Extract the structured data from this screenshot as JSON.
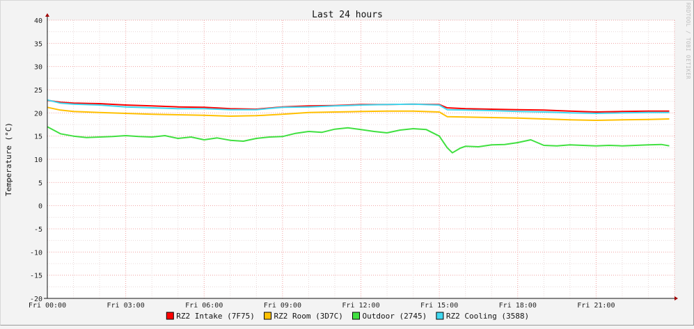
{
  "chart_data": {
    "type": "line",
    "title": "Last 24 hours",
    "ylabel": "Temperature (°C)",
    "xlabel": "",
    "watermark": "RRDTOOL / TOBI OETIKER",
    "ylim": [
      -20,
      40
    ],
    "yticks": [
      "40",
      "35",
      "30",
      "25",
      "20",
      "15",
      "10",
      "5",
      "0",
      "-5",
      "-10",
      "-15",
      "-20"
    ],
    "xlim_hours": [
      0,
      24
    ],
    "xticks": [
      "Fri 00:00",
      "Fri 03:00",
      "Fri 06:00",
      "Fri 09:00",
      "Fri 12:00",
      "Fri 15:00",
      "Fri 18:00",
      "Fri 21:00"
    ],
    "grid": true,
    "legend_position": "bottom",
    "series": [
      {
        "name": "RZ2 Intake (7F75)",
        "color": "#ff0000",
        "x": [
          0,
          0.5,
          1,
          2,
          3,
          4,
          5,
          6,
          7,
          8,
          9,
          10,
          11,
          12,
          13,
          14,
          15,
          15.3,
          16,
          17,
          18,
          19,
          20,
          21,
          22,
          23,
          23.8
        ],
        "y": [
          22.7,
          22.3,
          22.1,
          22.0,
          21.7,
          21.5,
          21.3,
          21.2,
          20.9,
          20.8,
          21.3,
          21.5,
          21.6,
          21.8,
          21.8,
          21.9,
          21.8,
          21.1,
          20.9,
          20.8,
          20.7,
          20.6,
          20.4,
          20.2,
          20.3,
          20.4,
          20.4
        ]
      },
      {
        "name": "RZ2 Room (3D7C)",
        "color": "#ffc000",
        "x": [
          0,
          0.5,
          1,
          2,
          3,
          4,
          5,
          6,
          7,
          8,
          9,
          10,
          11,
          12,
          13,
          14,
          15,
          15.3,
          16,
          17,
          18,
          19,
          20,
          21,
          22,
          23,
          23.8
        ],
        "y": [
          21.2,
          20.6,
          20.3,
          20.1,
          19.9,
          19.7,
          19.6,
          19.5,
          19.3,
          19.4,
          19.7,
          20.1,
          20.2,
          20.3,
          20.4,
          20.4,
          20.2,
          19.2,
          19.1,
          19.0,
          18.9,
          18.7,
          18.5,
          18.4,
          18.5,
          18.6,
          18.7
        ]
      },
      {
        "name": "Outdoor (2745)",
        "color": "#40e040",
        "x": [
          0,
          0.5,
          1,
          1.5,
          2,
          2.5,
          3,
          3.5,
          4,
          4.5,
          5,
          5.5,
          6,
          6.5,
          7,
          7.5,
          8,
          8.5,
          9,
          9.5,
          10,
          10.5,
          11,
          11.5,
          12,
          12.5,
          13,
          13.5,
          14,
          14.5,
          15,
          15.3,
          15.5,
          15.8,
          16,
          16.5,
          17,
          17.5,
          18,
          18.5,
          19,
          19.5,
          20,
          20.5,
          21,
          21.5,
          22,
          22.5,
          23,
          23.5,
          23.8
        ],
        "y": [
          17.0,
          15.5,
          15.0,
          14.7,
          14.8,
          14.9,
          15.1,
          14.9,
          14.8,
          15.1,
          14.5,
          14.8,
          14.2,
          14.6,
          14.1,
          13.9,
          14.5,
          14.8,
          14.9,
          15.6,
          16.0,
          15.8,
          16.5,
          16.8,
          16.4,
          16.0,
          15.7,
          16.3,
          16.6,
          16.4,
          15.0,
          12.5,
          11.4,
          12.4,
          12.8,
          12.7,
          13.1,
          13.2,
          13.6,
          14.2,
          13.0,
          12.9,
          13.1,
          13.0,
          12.9,
          13.0,
          12.9,
          13.0,
          13.1,
          13.2,
          12.9
        ]
      },
      {
        "name": "RZ2 Cooling (3588)",
        "color": "#40d8f0",
        "x": [
          0,
          0.5,
          1,
          2,
          3,
          4,
          5,
          6,
          7,
          8,
          9,
          10,
          11,
          12,
          13,
          14,
          15,
          15.3,
          16,
          17,
          18,
          19,
          20,
          21,
          22,
          23,
          23.8
        ],
        "y": [
          22.8,
          22.1,
          21.9,
          21.7,
          21.3,
          21.1,
          20.9,
          20.9,
          20.7,
          20.7,
          21.2,
          21.3,
          21.5,
          21.7,
          21.8,
          21.9,
          21.7,
          20.7,
          20.6,
          20.5,
          20.3,
          20.2,
          20.0,
          19.9,
          20.0,
          20.1,
          20.1
        ]
      }
    ]
  }
}
